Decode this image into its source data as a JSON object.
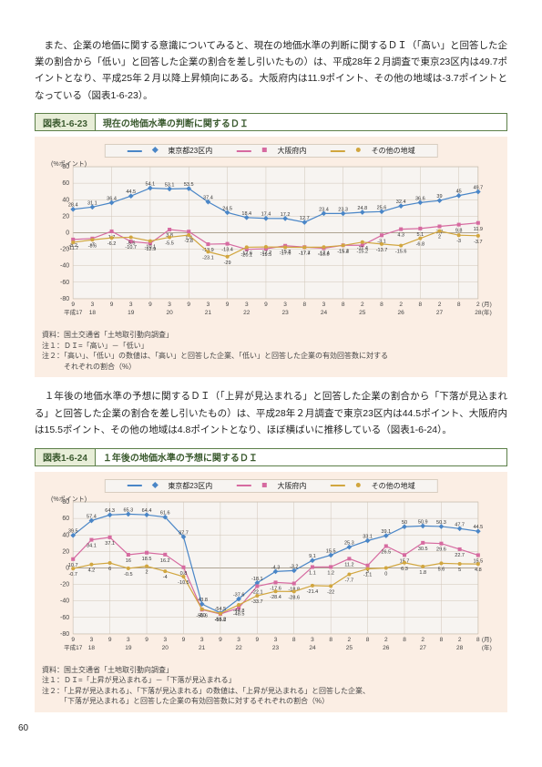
{
  "para1": "　また、企業の地価に関する意識についてみると、現在の地価水準の判断に関するＤＩ（「高い」と回答した企業の割合から「低い」と回答した企業の割合を差し引いたもの）は、平成28年２月調査で東京23区内は49.7ポイントとなり、平成25年２月以降上昇傾向にある。大阪府内は11.9ポイント、その他の地域は-3.7ポイントとなっている（図表1-6-23）。",
  "para2": "　１年後の地価水準の予想に関するＤＩ（「上昇が見込まれる」と回答した企業の割合から「下落が見込まれる」と回答した企業の割合を差し引いたもの）は、平成28年２月調査で東京23区内は44.5ポイント、大阪府内は15.5ポイント、その他の地域は4.8ポイントとなり、ほぼ横ばいに推移している（図表1-6-24）。",
  "chart1": {
    "titleLeft": "図表1-6-23",
    "titleRight": "現在の地価水準の判断に関するＤＩ",
    "ylabel": "(%ポイント)",
    "yticks": [
      80,
      60,
      40,
      20,
      0,
      -20,
      -40,
      -60,
      -80
    ],
    "xticks": [
      "9",
      "3",
      "9",
      "3",
      "9",
      "3",
      "9",
      "3",
      "9",
      "3",
      "9",
      "3",
      "8",
      "3",
      "8",
      "2",
      "8",
      "2",
      "8",
      "2",
      "8",
      "2",
      "8",
      "2"
    ],
    "xera": [
      "平成17",
      "18",
      "",
      "19",
      "",
      "20",
      "",
      "21",
      "",
      "22",
      "",
      "23",
      "",
      "24",
      "",
      "25",
      "",
      "26",
      "",
      "27",
      "",
      "28",
      ""
    ],
    "xtail": "(月)\n(年)",
    "legend": {
      "a": "東京都23区内",
      "b": "大阪府内",
      "c": "その他の地域"
    },
    "tokyo": [
      28.4,
      31.1,
      36.4,
      44.5,
      54.1,
      53.1,
      53.5,
      37.4,
      24.5,
      18.4,
      17.4,
      17.2,
      12.7,
      23.4,
      23.3,
      24.8,
      25.6,
      32.4,
      36.6,
      39.0,
      45.0,
      49.7
    ],
    "osaka": [
      -8.2,
      -7.0,
      1.7,
      -10.7,
      -12.9,
      3.8,
      1.4,
      -13.9,
      -13.4,
      -20.1,
      -19.5,
      -15.8,
      -17.4,
      -18.8,
      -15.2,
      -15.2,
      -3.1,
      4.3,
      5.1,
      7.7,
      9.8,
      11.9
    ],
    "other": [
      -11.7,
      -8.6,
      -6.2,
      -5.5,
      -10.1,
      -5.5,
      -2.8,
      -23.1,
      -29.0,
      -17.6,
      -17.2,
      -17.6,
      -17.7,
      -17.4,
      -15.4,
      -11.4,
      -13.7,
      -15.6,
      -6.8,
      2.0,
      -3.0,
      -3.7
    ],
    "notes": "資料：国土交通省「土地取引動向調査」\n注１：ＤＩ=「高い」－「低い」\n注２：「高い」、「低い」の数値は、「高い」と回答した企業、「低い」と回答した企業の有効回答数に対する\n　　　それぞれの割合（%）",
    "background": "#fbeee4",
    "plot_bg": "#f7f4f1"
  },
  "chart2": {
    "titleLeft": "図表1-6-24",
    "titleRight": "１年後の地価水準の予想に関するＤＩ",
    "ylabel": "(%ポイント)",
    "yticks": [
      80,
      60,
      40,
      20,
      0,
      -20,
      -40,
      -60,
      -80
    ],
    "xticks": [
      "9",
      "3",
      "9",
      "3",
      "9",
      "3",
      "9",
      "3",
      "9",
      "3",
      "9",
      "3",
      "8",
      "3",
      "8",
      "2",
      "8",
      "2",
      "8",
      "2",
      "8",
      "2",
      "8",
      "2"
    ],
    "xera": [
      "平成17",
      "18",
      "",
      "19",
      "",
      "20",
      "",
      "21",
      "",
      "22",
      "",
      "23",
      "",
      "24",
      "",
      "25",
      "",
      "26",
      "",
      "27",
      "",
      "28",
      ""
    ],
    "xtail": "(月)\n(年)",
    "legend": {
      "a": "東京都23区内",
      "b": "大阪府内",
      "c": "その他の地域"
    },
    "tokyo": [
      39.5,
      57.4,
      64.3,
      65.3,
      64.4,
      61.6,
      37.7,
      -43.8,
      -54.5,
      -37.6,
      -18.1,
      -4.3,
      -3.2,
      9.1,
      15.5,
      25.3,
      33.1,
      39.1,
      50.0,
      50.9,
      50.3,
      47.7,
      44.5
    ],
    "osaka": [
      10.7,
      34.1,
      37.1,
      16.0,
      18.5,
      16.2,
      0.8,
      -50.6,
      -55.8,
      -48.5,
      -22.1,
      -17.6,
      -18.8,
      1.1,
      1.2,
      11.2,
      3.0,
      26.5,
      15.7,
      30.5,
      29.6,
      22.7,
      15.5
    ],
    "other": [
      -0.7,
      4.2,
      6.0,
      -0.5,
      2.0,
      -4.0,
      -10.5,
      -50.0,
      -55.2,
      -44.8,
      -33.7,
      -28.4,
      -28.6,
      -21.4,
      -22.0,
      -7.7,
      -1.1,
      0.0,
      6.3,
      1.8,
      5.6,
      5.0,
      4.8
    ],
    "notes": "資料：国土交通省「土地取引動向調査」\n注１：ＤＩ=「上昇が見込まれる」－「下落が見込まれる」\n注２：「上昇が見込まれる」、「下落が見込まれる」の数値は、「上昇が見込まれる」と回答した企業、\n　　　「下落が見込まれる」と回答した企業の有効回答数に対するそれぞれの割合（%）",
    "background": "#fbeee4",
    "plot_bg": "#f7f4f1"
  },
  "page_num": "60"
}
